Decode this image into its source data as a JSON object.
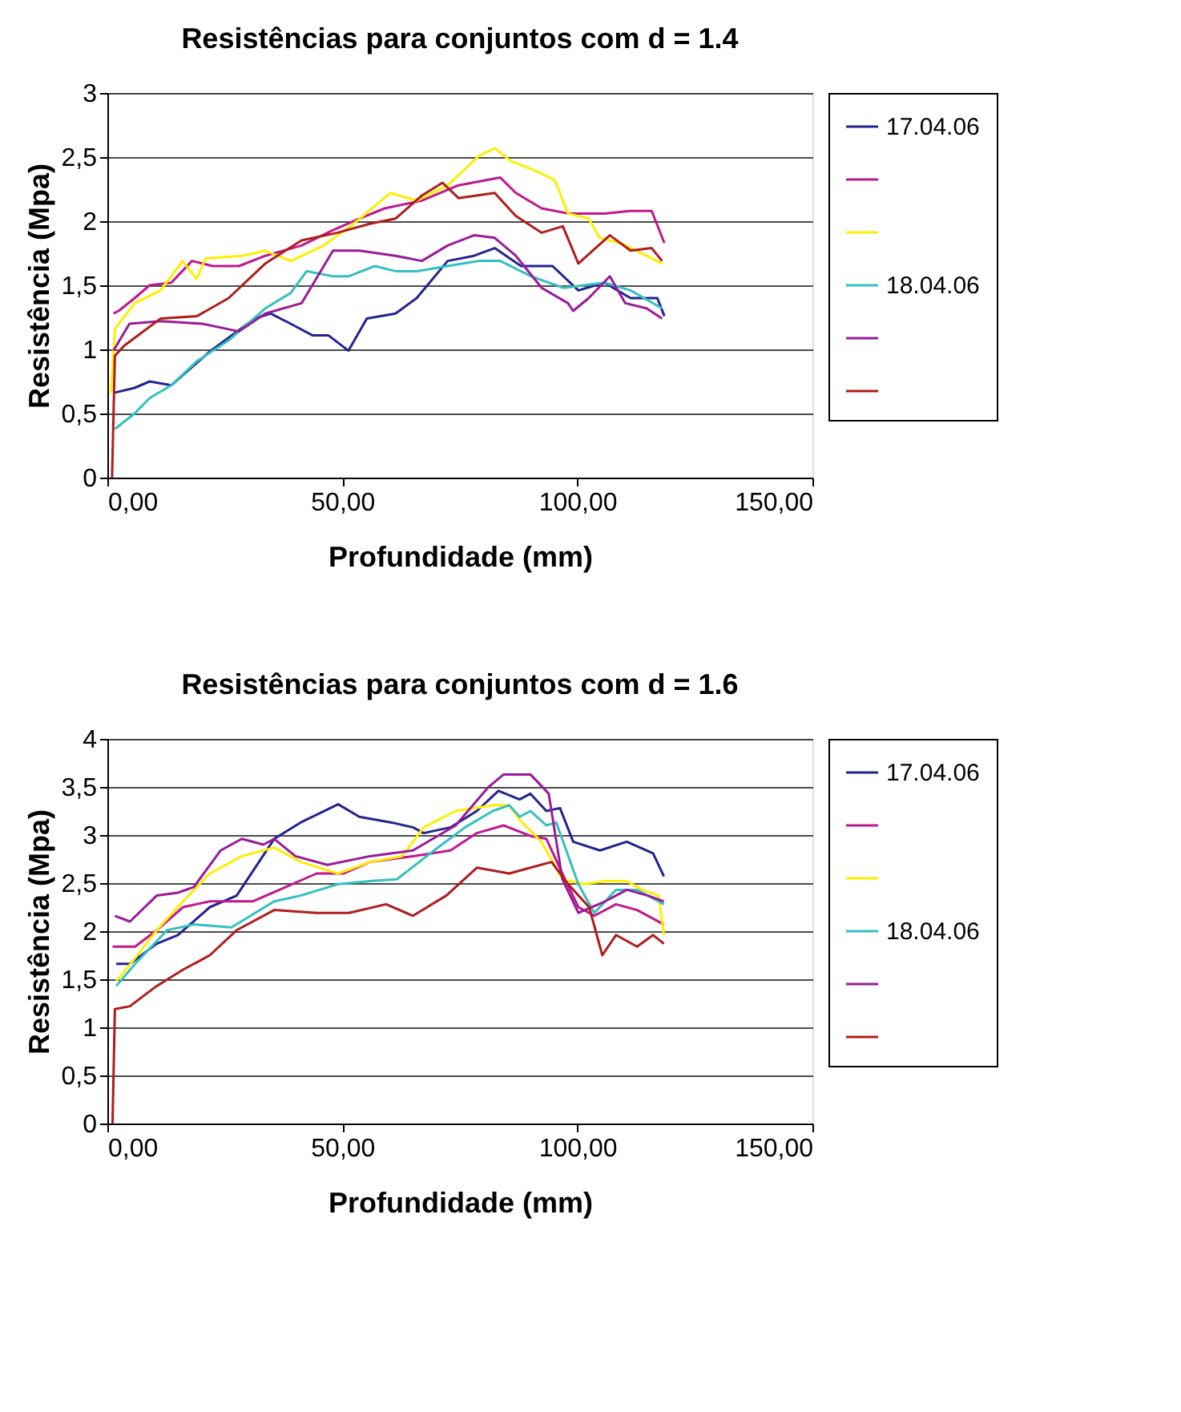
{
  "chart_data": [
    {
      "type": "line",
      "title": "Resistências para conjuntos com d = 1.4",
      "xlabel": "Profundidade (mm)",
      "ylabel": "Resistência (Mpa)",
      "xlim": [
        0,
        150
      ],
      "xticks": [
        {
          "value": 0,
          "label": "0,00"
        },
        {
          "value": 50,
          "label": "50,00"
        },
        {
          "value": 100,
          "label": "100,00"
        },
        {
          "value": 150,
          "label": "150,00"
        }
      ],
      "ylim": [
        0,
        3
      ],
      "yticks": [
        0,
        {
          "value": 0.5,
          "label": "0,5"
        },
        1,
        {
          "value": 1.5,
          "label": "1,5"
        },
        2,
        {
          "value": 2.5,
          "label": "2,5"
        },
        3
      ],
      "grid": "y",
      "legend": "right",
      "series": [
        {
          "name": "17.04.06",
          "color": "#23238f",
          "x": [
            1.3,
            5.8,
            9,
            13.6,
            22,
            31.3,
            34.7,
            39,
            43.6,
            47,
            51.3,
            55.2,
            61.3,
            65.8,
            72.4,
            78,
            82.4,
            88,
            94.7,
            100.2,
            105.8,
            111.3,
            117,
            118.5
          ],
          "values": [
            0.66,
            0.7,
            0.75,
            0.72,
            0.99,
            1.24,
            1.28,
            1.2,
            1.11,
            1.11,
            0.99,
            1.24,
            1.28,
            1.4,
            1.69,
            1.73,
            1.79,
            1.65,
            1.65,
            1.46,
            1.52,
            1.4,
            1.4,
            1.26
          ]
        },
        {
          "color": "#c0188c",
          "x": [
            1.3,
            2.4,
            5.8,
            9,
            13.6,
            18,
            22.4,
            28,
            33.6,
            41.3,
            48,
            53.6,
            59,
            66.9,
            74.7,
            83.6,
            86.9,
            92.4,
            98,
            105.8,
            111.3,
            115.8,
            118.5
          ],
          "values": [
            1.28,
            1.3,
            1.4,
            1.5,
            1.52,
            1.69,
            1.65,
            1.65,
            1.73,
            1.81,
            1.93,
            2.02,
            2.1,
            2.16,
            2.28,
            2.34,
            2.22,
            2.1,
            2.06,
            2.06,
            2.08,
            2.08,
            1.83
          ]
        },
        {
          "color": "#ffee00",
          "x": [
            0.8,
            1.6,
            5.8,
            11.3,
            16,
            19,
            20.9,
            28.7,
            33.6,
            39,
            46,
            52.4,
            60.2,
            65.8,
            72.4,
            79.1,
            82.4,
            85.8,
            91.3,
            95.2,
            98,
            102.4,
            104.7,
            109.1,
            114.7,
            118
          ],
          "values": [
            0.66,
            1.16,
            1.36,
            1.46,
            1.69,
            1.55,
            1.71,
            1.73,
            1.77,
            1.69,
            1.81,
            1.98,
            2.22,
            2.16,
            2.28,
            2.51,
            2.57,
            2.47,
            2.39,
            2.32,
            2.06,
            2.02,
            1.87,
            1.83,
            1.73,
            1.67
          ]
        },
        {
          "name": "18.04.06",
          "color": "#33c0c0",
          "x": [
            1.6,
            5.8,
            9,
            13.6,
            19.1,
            25.8,
            33.6,
            39,
            42.4,
            48,
            51.3,
            56.9,
            61.3,
            65.8,
            72.4,
            79.1,
            83.6,
            90.2,
            97,
            101.3,
            105.8,
            111.3,
            118
          ],
          "values": [
            0.38,
            0.5,
            0.62,
            0.72,
            0.91,
            1.07,
            1.32,
            1.44,
            1.61,
            1.57,
            1.57,
            1.65,
            1.61,
            1.61,
            1.65,
            1.69,
            1.69,
            1.57,
            1.48,
            1.5,
            1.52,
            1.46,
            1.32
          ]
        },
        {
          "color": "#9a1a9a",
          "x": [
            1.3,
            4.7,
            11.3,
            20.2,
            28,
            33.6,
            41.3,
            48,
            53.6,
            61.3,
            66.9,
            72.4,
            78,
            82.4,
            86.9,
            92.4,
            98,
            99.1,
            102.4,
            106.9,
            110.2,
            114.7,
            118
          ],
          "values": [
            0.99,
            1.2,
            1.22,
            1.2,
            1.14,
            1.28,
            1.36,
            1.77,
            1.77,
            1.73,
            1.69,
            1.81,
            1.89,
            1.87,
            1.73,
            1.48,
            1.36,
            1.3,
            1.4,
            1.57,
            1.36,
            1.32,
            1.24
          ]
        },
        {
          "color": "#b01c1c",
          "x": [
            1,
            1.6,
            3.6,
            11.3,
            19.1,
            25.8,
            33.6,
            41.3,
            49,
            55.8,
            61.3,
            66.9,
            71.3,
            74.7,
            82.4,
            86.9,
            92.4,
            96.9,
            100.2,
            106.9,
            111.3,
            115.8,
            118
          ],
          "values": [
            0,
            0.95,
            1.03,
            1.24,
            1.26,
            1.4,
            1.67,
            1.85,
            1.91,
            1.98,
            2.02,
            2.2,
            2.3,
            2.18,
            2.22,
            2.04,
            1.91,
            1.96,
            1.67,
            1.89,
            1.77,
            1.79,
            1.69
          ]
        }
      ]
    },
    {
      "type": "line",
      "title": "Resistências para conjuntos com d = 1.6",
      "xlabel": "Profundidade (mm)",
      "ylabel": "Resistência (Mpa)",
      "xlim": [
        0,
        150
      ],
      "xticks": [
        {
          "value": 0,
          "label": "0,00"
        },
        {
          "value": 50,
          "label": "50,00"
        },
        {
          "value": 100,
          "label": "100,00"
        },
        {
          "value": 150,
          "label": "150,00"
        }
      ],
      "ylim": [
        0,
        4
      ],
      "yticks": [
        0,
        {
          "value": 0.5,
          "label": "0,5"
        },
        1,
        {
          "value": 1.5,
          "label": "1,5"
        },
        2,
        {
          "value": 2.5,
          "label": "2,5"
        },
        3,
        {
          "value": 3.5,
          "label": "3,5"
        },
        4
      ],
      "grid": "y",
      "legend": "right",
      "series": [
        {
          "name": "17.04.06",
          "color": "#23238f",
          "x": [
            1.9,
            4.8,
            10.5,
            15,
            21.8,
            27.5,
            35.5,
            41.1,
            49.1,
            53.6,
            60.5,
            65,
            67.3,
            73,
            78.6,
            83.2,
            87.7,
            90,
            93.4,
            96.3,
            99.1,
            104.8,
            110.5,
            116.1,
            118.4
          ],
          "values": [
            1.66,
            1.66,
            1.87,
            1.96,
            2.25,
            2.37,
            2.96,
            3.13,
            3.32,
            3.19,
            3.13,
            3.08,
            3.02,
            3.08,
            3.25,
            3.46,
            3.37,
            3.43,
            3.25,
            3.28,
            2.93,
            2.84,
            2.93,
            2.81,
            2.57
          ]
        },
        {
          "color": "#c0188c",
          "x": [
            1.1,
            5.9,
            10.5,
            16.1,
            21.8,
            30.9,
            36.6,
            44.5,
            50.2,
            55.9,
            65,
            73,
            78.6,
            84.3,
            90,
            93.4,
            96.8,
            100.2,
            103.6,
            108.2,
            112.7,
            118.4
          ],
          "values": [
            1.84,
            1.84,
            2.01,
            2.25,
            2.31,
            2.31,
            2.43,
            2.6,
            2.6,
            2.72,
            2.78,
            2.84,
            3.02,
            3.1,
            2.99,
            2.96,
            2.6,
            2.25,
            2.16,
            2.28,
            2.22,
            2.07
          ]
        },
        {
          "color": "#ffee00",
          "x": [
            1.9,
            5.9,
            10.5,
            16.1,
            21.8,
            28.6,
            35.5,
            41.1,
            49.1,
            55.9,
            62.7,
            67.3,
            74.1,
            82.2,
            85.5,
            87.7,
            92.3,
            96.8,
            101.4,
            105.9,
            110.5,
            113.9,
            117.3,
            118.4
          ],
          "values": [
            1.48,
            1.72,
            2.01,
            2.31,
            2.6,
            2.78,
            2.87,
            2.72,
            2.6,
            2.72,
            2.78,
            3.08,
            3.25,
            3.31,
            3.31,
            3.16,
            2.93,
            2.54,
            2.49,
            2.52,
            2.52,
            2.43,
            2.37,
            1.96
          ]
        },
        {
          "name": "18.04.06",
          "color": "#33c0c0",
          "x": [
            1.9,
            5.9,
            12.7,
            18.4,
            26.4,
            35.5,
            41.1,
            49.1,
            55.9,
            61.6,
            69.5,
            76.1,
            82,
            85.5,
            87.7,
            90,
            93.4,
            95.5,
            100.2,
            103.6,
            108.2,
            112.7,
            118.4
          ],
          "values": [
            1.43,
            1.66,
            2.01,
            2.07,
            2.04,
            2.31,
            2.37,
            2.49,
            2.52,
            2.54,
            2.84,
            3.08,
            3.25,
            3.31,
            3.19,
            3.25,
            3.1,
            3.13,
            2.49,
            2.19,
            2.43,
            2.43,
            2.28
          ]
        },
        {
          "color": "#9a1a9a",
          "x": [
            1.6,
            4.8,
            10.5,
            15,
            18.4,
            24.1,
            28.6,
            33.2,
            35.5,
            40,
            46.8,
            55.9,
            65,
            74.1,
            80.9,
            84.3,
            90,
            93.9,
            96.8,
            100.2,
            105.9,
            110.5,
            115,
            118.4
          ],
          "values": [
            2.16,
            2.1,
            2.37,
            2.4,
            2.46,
            2.84,
            2.96,
            2.9,
            2.96,
            2.78,
            2.69,
            2.78,
            2.84,
            3.1,
            3.49,
            3.63,
            3.63,
            3.43,
            2.54,
            2.19,
            2.31,
            2.43,
            2.37,
            2.31
          ]
        },
        {
          "color": "#b01c1c",
          "x": [
            1.1,
            1.6,
            4.8,
            10.5,
            16.1,
            21.8,
            27.5,
            35.5,
            44.5,
            51.4,
            59.3,
            65,
            72.1,
            78.6,
            85.5,
            90,
            94.5,
            98,
            102.5,
            105.3,
            108.2,
            112.7,
            116.1,
            118.4
          ],
          "values": [
            0,
            1.19,
            1.22,
            1.43,
            1.6,
            1.75,
            2.01,
            2.22,
            2.19,
            2.19,
            2.28,
            2.16,
            2.37,
            2.66,
            2.6,
            2.66,
            2.72,
            2.49,
            2.25,
            1.75,
            1.96,
            1.84,
            1.96,
            1.87
          ]
        }
      ]
    }
  ]
}
